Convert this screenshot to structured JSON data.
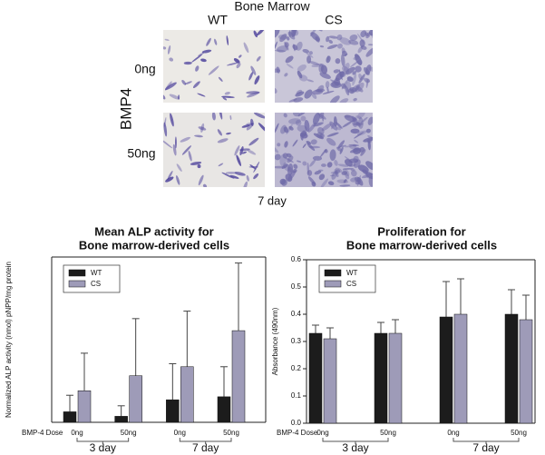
{
  "micrograph": {
    "title": "Bone Marrow",
    "columns": [
      "WT",
      "CS"
    ],
    "rows": [
      "0ng",
      "50ng"
    ],
    "row_label": "BMP4",
    "caption": "7 day"
  },
  "chart_data": [
    {
      "type": "bar",
      "title": [
        "Mean ALP activity for",
        "Bone marrow-derived cells"
      ],
      "y_label": "Normalized ALP activity (nmol) pNPP/mg protein",
      "x_label": "BMP-4 Dose",
      "categories": [
        "0ng",
        "50ng",
        "0ng",
        "50ng"
      ],
      "group_labels": [
        "3 day",
        "7 day"
      ],
      "series": [
        {
          "name": "WT",
          "color": "#1c1c1c",
          "values": [
            70,
            40,
            150,
            170
          ],
          "errors": [
            110,
            70,
            240,
            200
          ]
        },
        {
          "name": "CS",
          "color": "#9e9bb8",
          "values": [
            210,
            310,
            370,
            610
          ],
          "errors": [
            250,
            380,
            370,
            450
          ]
        }
      ],
      "ylim": [
        0,
        1100
      ],
      "legend": "upper left"
    },
    {
      "type": "bar",
      "title": [
        "Proliferation for",
        "Bone marrow-derived cells"
      ],
      "y_label": "Absorbance (490nm)",
      "x_label": "BMP-4 Dose",
      "categories": [
        "0ng",
        "50ng",
        "0ng",
        "50ng"
      ],
      "group_labels": [
        "3 day",
        "7 day"
      ],
      "series": [
        {
          "name": "WT",
          "color": "#1c1c1c",
          "values": [
            0.33,
            0.33,
            0.39,
            0.4
          ],
          "errors": [
            0.03,
            0.04,
            0.13,
            0.09
          ]
        },
        {
          "name": "CS",
          "color": "#9e9bb8",
          "values": [
            0.31,
            0.33,
            0.4,
            0.38
          ],
          "errors": [
            0.04,
            0.05,
            0.13,
            0.09
          ]
        }
      ],
      "ylim": [
        0,
        0.6
      ],
      "yticks": [
        {
          "value": 0,
          "label": "0.0"
        },
        0.1,
        0.2,
        0.3,
        0.4,
        0.5,
        0.6
      ],
      "legend": "upper left"
    }
  ]
}
